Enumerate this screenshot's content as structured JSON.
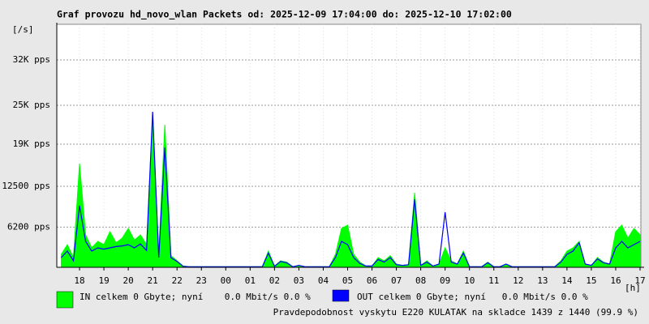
{
  "chart_data": {
    "type": "area",
    "title": "Graf provozu hd_novo_wlan Packets od: 2025-12-09 17:04:00 do: 2025-12-10 17:02:00",
    "y_unit_label": "[/s]",
    "x_unit_label": "[h]",
    "xlim": [
      17.0667,
      41.0333
    ],
    "xticks": [
      {
        "value": 18,
        "label": "18"
      },
      {
        "value": 19,
        "label": "19"
      },
      {
        "value": 20,
        "label": "20"
      },
      {
        "value": 21,
        "label": "21"
      },
      {
        "value": 22,
        "label": "22"
      },
      {
        "value": 23,
        "label": "23"
      },
      {
        "value": 24,
        "label": "00"
      },
      {
        "value": 25,
        "label": "01"
      },
      {
        "value": 26,
        "label": "02"
      },
      {
        "value": 27,
        "label": "03"
      },
      {
        "value": 28,
        "label": "04"
      },
      {
        "value": 29,
        "label": "05"
      },
      {
        "value": 30,
        "label": "06"
      },
      {
        "value": 31,
        "label": "07"
      },
      {
        "value": 32,
        "label": "08"
      },
      {
        "value": 33,
        "label": "09"
      },
      {
        "value": 34,
        "label": "10"
      },
      {
        "value": 35,
        "label": "11"
      },
      {
        "value": 36,
        "label": "12"
      },
      {
        "value": 37,
        "label": "13"
      },
      {
        "value": 38,
        "label": "14"
      },
      {
        "value": 39,
        "label": "15"
      },
      {
        "value": 40,
        "label": "16"
      },
      {
        "value": 41,
        "label": "17"
      }
    ],
    "ylim": [
      0,
      37500
    ],
    "yticks": [
      {
        "value": 6200,
        "label": "6200 pps"
      },
      {
        "value": 12500,
        "label": "12500 pps"
      },
      {
        "value": 19000,
        "label": "19K pps"
      },
      {
        "value": 25000,
        "label": "25K pps"
      },
      {
        "value": 32000,
        "label": "32K pps"
      }
    ],
    "grid": true,
    "x": [
      17.25,
      17.5,
      17.75,
      18,
      18.25,
      18.5,
      18.75,
      19,
      19.25,
      19.5,
      19.75,
      20,
      20.25,
      20.5,
      20.75,
      21,
      21.25,
      21.5,
      21.75,
      22,
      22.25,
      22.5,
      22.75,
      23,
      23.25,
      23.5,
      23.75,
      24,
      24.25,
      24.5,
      24.75,
      25,
      25.25,
      25.5,
      25.75,
      26,
      26.25,
      26.5,
      26.75,
      27,
      27.25,
      27.5,
      27.75,
      28,
      28.25,
      28.5,
      28.75,
      29,
      29.25,
      29.5,
      29.75,
      30,
      30.25,
      30.5,
      30.75,
      31,
      31.25,
      31.5,
      31.75,
      32,
      32.25,
      32.5,
      32.75,
      33,
      33.25,
      33.5,
      33.75,
      34,
      34.25,
      34.5,
      34.75,
      35,
      35.25,
      35.5,
      35.75,
      36,
      36.25,
      36.5,
      36.75,
      37,
      37.25,
      37.5,
      37.75,
      38,
      38.25,
      38.5,
      38.75,
      39,
      39.25,
      39.5,
      39.75,
      40,
      40.25,
      40.5,
      40.75,
      41
    ],
    "series": [
      {
        "name": "IN celkem 0 Gbyte; nyní    0.0 Mbit/s 0.0 %",
        "color": "#00ff00",
        "style": "area",
        "values": [
          2000,
          3500,
          1500,
          16000,
          5000,
          3000,
          4000,
          3500,
          5500,
          3800,
          4500,
          6000,
          4200,
          5000,
          3500,
          23500,
          2000,
          22000,
          1800,
          1000,
          200,
          100,
          100,
          100,
          100,
          100,
          100,
          100,
          100,
          100,
          100,
          100,
          100,
          100,
          2500,
          200,
          1000,
          800,
          100,
          300,
          100,
          100,
          100,
          100,
          100,
          2000,
          6000,
          6500,
          2000,
          800,
          200,
          200,
          1500,
          1000,
          1800,
          500,
          300,
          400,
          11500,
          300,
          1000,
          200,
          500,
          3000,
          1000,
          500,
          2500,
          100,
          100,
          100,
          800,
          100,
          100,
          500,
          100,
          100,
          100,
          100,
          100,
          100,
          100,
          100,
          1000,
          2500,
          3000,
          4000,
          500,
          300,
          1500,
          800,
          500,
          5500,
          6500,
          4500,
          6000,
          5000
        ]
      },
      {
        "name": "OUT celkem 0 Gbyte; nyní   0.0 Mbit/s 0.0 %",
        "color": "#0000ff",
        "style": "line",
        "values": [
          1500,
          2500,
          1000,
          9500,
          4000,
          2500,
          3000,
          2800,
          3000,
          3200,
          3300,
          3500,
          3000,
          3600,
          2600,
          24000,
          1500,
          18500,
          1500,
          900,
          150,
          80,
          80,
          80,
          80,
          80,
          80,
          80,
          80,
          80,
          80,
          80,
          80,
          80,
          2200,
          150,
          900,
          700,
          80,
          300,
          80,
          80,
          80,
          80,
          80,
          1500,
          4000,
          3500,
          1500,
          600,
          200,
          200,
          1200,
          800,
          1500,
          400,
          300,
          400,
          10500,
          300,
          800,
          200,
          500,
          8500,
          800,
          500,
          2200,
          80,
          80,
          80,
          700,
          80,
          80,
          500,
          80,
          80,
          80,
          80,
          80,
          80,
          80,
          80,
          800,
          2000,
          2500,
          3800,
          500,
          300,
          1300,
          700,
          500,
          3000,
          4000,
          3000,
          3500,
          4000
        ]
      }
    ],
    "annotations": [
      "Pravdepodobnost vyskytu E220 KULATAK na skladce 1439 z 1440 (99.9 %)"
    ],
    "annotation_color": "#ff0000"
  }
}
